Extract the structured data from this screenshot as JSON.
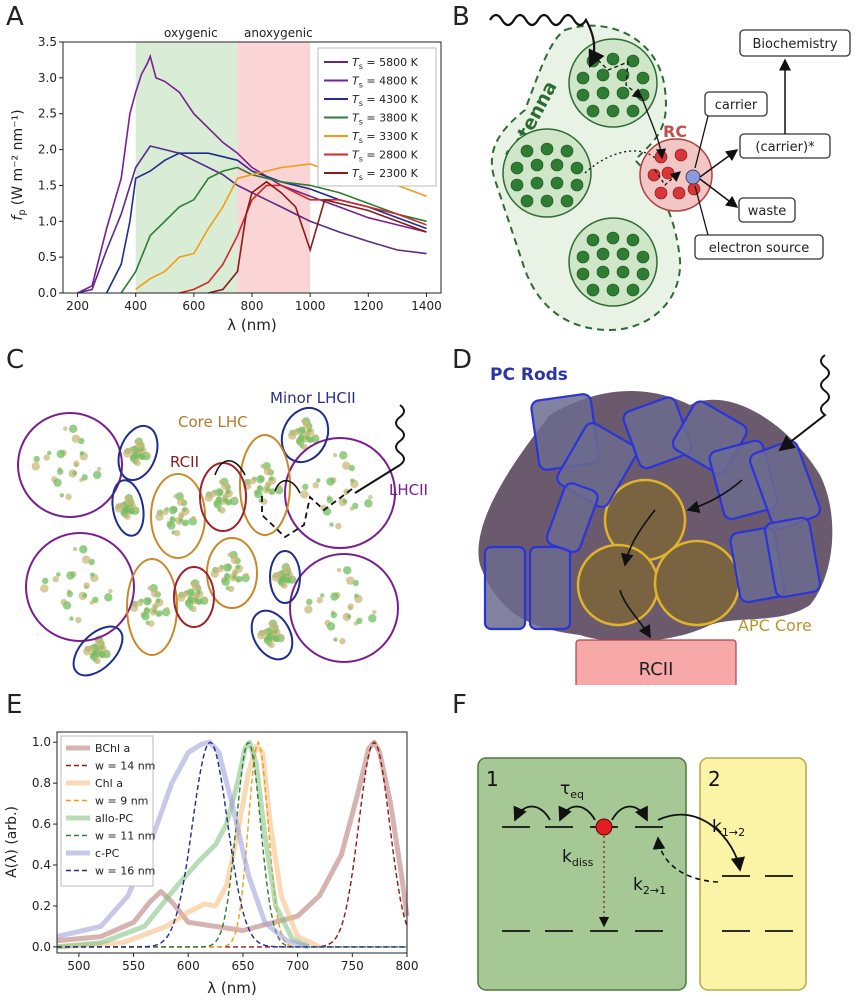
{
  "panels": {
    "A": "A",
    "B": "B",
    "C": "C",
    "D": "D",
    "E": "E",
    "F": "F"
  },
  "panel_a": {
    "region_oxygenic": "oxygenic",
    "region_anoxygenic": "anoxygenic",
    "xlabel": "λ (nm)",
    "ylabel": "f",
    "ylabel_sub": "p",
    "ylabel_units": "(W m⁻² nm⁻¹)"
  },
  "panel_b": {
    "antenna": "Antenna",
    "rc": "RC",
    "carrier": "carrier",
    "carrier_star": "(carrier)*",
    "biochemistry": "Biochemistry",
    "waste": "waste",
    "electron_source": "electron source"
  },
  "panel_c": {
    "core_lhc": "Core LHC",
    "minor_lhcii": "Minor LHCII",
    "rcii": "RCII",
    "lhcii": "LHCII"
  },
  "panel_d": {
    "pc_rods": "PC Rods",
    "apc_core": "APC Core",
    "rcii": "RCII"
  },
  "panel_e": {
    "xlabel": "λ (nm)",
    "ylabel": "A(λ) (arb.)"
  },
  "panel_f": {
    "box1": "1",
    "box2": "2",
    "tau_eq": "τ",
    "tau_eq_sub": "eq",
    "k_diss": "k",
    "k_diss_sub": "diss",
    "k12": "k",
    "k12_sub": "1→2",
    "k21": "k",
    "k21_sub": "2→1"
  },
  "chart_data": [
    {
      "type": "line",
      "panel": "A",
      "xlabel": "λ (nm)",
      "ylabel": "f_p (W m⁻² nm⁻¹)",
      "xlim": [
        150,
        1450
      ],
      "ylim": [
        0,
        3.5
      ],
      "xticks": [
        200,
        400,
        600,
        800,
        1000,
        1200,
        1400
      ],
      "yticks": [
        0.0,
        0.5,
        1.0,
        1.5,
        2.0,
        2.5,
        3.0,
        3.5
      ],
      "shaded_regions": [
        {
          "label": "oxygenic",
          "range": [
            400,
            750
          ],
          "color": "#d9ecd6"
        },
        {
          "label": "anoxygenic",
          "range": [
            750,
            1000
          ],
          "color": "#fbd5d5"
        }
      ],
      "legend_position": "top-right",
      "series": [
        {
          "name": "T_s = 5800 K",
          "legend": "5800 K",
          "color": "#5b2a86",
          "x": [
            200,
            250,
            300,
            350,
            400,
            450,
            500,
            550,
            600,
            650,
            700,
            750,
            800,
            850,
            900,
            950,
            1000,
            1100,
            1200,
            1300,
            1400
          ],
          "y": [
            0.0,
            0.05,
            0.6,
            1.1,
            1.75,
            2.05,
            2.0,
            1.95,
            1.85,
            1.75,
            1.65,
            1.5,
            1.4,
            1.3,
            1.2,
            1.1,
            1.0,
            0.85,
            0.72,
            0.6,
            0.55
          ]
        },
        {
          "name": "T_s = 4800 K",
          "legend": "4800 K",
          "color": "#7a1f8f",
          "x": [
            200,
            250,
            300,
            350,
            380,
            400,
            420,
            440,
            450,
            470,
            500,
            550,
            600,
            650,
            700,
            750,
            800,
            900,
            1000,
            1100,
            1200,
            1300,
            1400
          ],
          "y": [
            0.0,
            0.1,
            0.9,
            1.6,
            2.5,
            2.8,
            3.05,
            3.2,
            3.3,
            3.0,
            2.95,
            2.8,
            2.5,
            2.3,
            2.1,
            1.95,
            1.75,
            1.5,
            1.35,
            1.2,
            1.05,
            0.95,
            0.85
          ]
        },
        {
          "name": "T_s = 4300 K",
          "legend": "4300 K",
          "color": "#1f2d8f",
          "x": [
            300,
            350,
            380,
            400,
            450,
            500,
            550,
            600,
            650,
            700,
            750,
            800,
            900,
            1000,
            1100,
            1200,
            1300,
            1400
          ],
          "y": [
            0.0,
            0.4,
            1.0,
            1.6,
            1.7,
            1.85,
            1.95,
            1.95,
            1.95,
            1.9,
            1.85,
            1.7,
            1.55,
            1.45,
            1.3,
            1.2,
            1.05,
            0.9
          ]
        },
        {
          "name": "T_s = 3800 K",
          "legend": "3800 K",
          "color": "#2e7d32",
          "x": [
            350,
            400,
            450,
            500,
            550,
            600,
            650,
            700,
            750,
            800,
            900,
            1000,
            1100,
            1200,
            1300,
            1400
          ],
          "y": [
            0.0,
            0.3,
            0.8,
            1.0,
            1.2,
            1.3,
            1.6,
            1.7,
            1.75,
            1.65,
            1.55,
            1.5,
            1.4,
            1.25,
            1.1,
            1.0
          ]
        },
        {
          "name": "T_s = 3300 K",
          "legend": "3300 K",
          "color": "#f39c12",
          "x": [
            400,
            450,
            500,
            550,
            600,
            650,
            700,
            750,
            800,
            850,
            900,
            1000,
            1100,
            1200,
            1300,
            1400
          ],
          "y": [
            0.05,
            0.2,
            0.3,
            0.5,
            0.55,
            0.9,
            1.2,
            1.6,
            1.65,
            1.7,
            1.75,
            1.8,
            1.65,
            1.55,
            1.5,
            1.35
          ]
        },
        {
          "name": "T_s = 2800 K",
          "legend": "2800 K",
          "color": "#d62728",
          "x": [
            550,
            600,
            650,
            700,
            750,
            800,
            850,
            900,
            950,
            1000,
            1100,
            1200,
            1300,
            1400
          ],
          "y": [
            0.0,
            0.05,
            0.15,
            0.4,
            0.8,
            1.3,
            1.5,
            1.5,
            1.4,
            1.3,
            1.3,
            1.2,
            1.1,
            0.95
          ]
        },
        {
          "name": "T_s = 2300 K",
          "legend": "2300 K",
          "color": "#8b1a1a",
          "x": [
            650,
            700,
            750,
            780,
            800,
            850,
            900,
            950,
            1000,
            1050,
            1100,
            1200,
            1300,
            1400
          ],
          "y": [
            0.0,
            0.05,
            0.3,
            1.1,
            1.4,
            1.55,
            1.4,
            1.2,
            0.6,
            1.3,
            1.25,
            1.15,
            1.0,
            0.85
          ]
        }
      ]
    },
    {
      "type": "line",
      "panel": "E",
      "xlabel": "λ (nm)",
      "ylabel": "A(λ) (arb.)",
      "xlim": [
        480,
        800
      ],
      "ylim": [
        -0.03,
        1.05
      ],
      "xticks": [
        500,
        550,
        600,
        650,
        700,
        750,
        800
      ],
      "yticks": [
        0.0,
        0.2,
        0.4,
        0.6,
        0.8,
        1.0
      ],
      "legend_position": "top-left",
      "legend": [
        {
          "label": "BChl a",
          "style": "thick"
        },
        {
          "label": "w = 14 nm",
          "style": "dashed"
        },
        {
          "label": "Chl a",
          "style": "thick"
        },
        {
          "label": "w = 9 nm",
          "style": "dashed"
        },
        {
          "label": "allo-PC",
          "style": "thick"
        },
        {
          "label": "w = 11 nm",
          "style": "dashed"
        },
        {
          "label": "c-PC",
          "style": "thick"
        },
        {
          "label": "w = 16 nm",
          "style": "dashed"
        }
      ],
      "series": [
        {
          "name": "BChl a",
          "style": "thick",
          "color": "#b5746f",
          "x": [
            480,
            520,
            550,
            565,
            575,
            585,
            600,
            650,
            700,
            720,
            740,
            755,
            765,
            770,
            775,
            785,
            795,
            800
          ],
          "y": [
            0.03,
            0.05,
            0.12,
            0.22,
            0.27,
            0.22,
            0.12,
            0.08,
            0.15,
            0.25,
            0.45,
            0.75,
            0.97,
            1.0,
            0.95,
            0.7,
            0.35,
            0.15
          ]
        },
        {
          "name": "w = 14 nm",
          "style": "dashed",
          "color": "#8b1a1a",
          "center": 770,
          "width": 14
        },
        {
          "name": "Chl a",
          "style": "thick",
          "color": "#f5b97a",
          "x": [
            480,
            540,
            580,
            600,
            615,
            625,
            635,
            645,
            655,
            662,
            668,
            675,
            685,
            700,
            720
          ],
          "y": [
            0.0,
            0.02,
            0.1,
            0.17,
            0.21,
            0.2,
            0.3,
            0.55,
            0.85,
            0.98,
            0.95,
            0.6,
            0.25,
            0.05,
            0.0
          ]
        },
        {
          "name": "w = 9 nm",
          "style": "dashed",
          "color": "#f39c12",
          "center": 664,
          "width": 9
        },
        {
          "name": "allo-PC",
          "style": "thick",
          "color": "#7dbf7d",
          "x": [
            480,
            520,
            560,
            590,
            610,
            625,
            635,
            645,
            652,
            656,
            662,
            670,
            680,
            695,
            710
          ],
          "y": [
            0.0,
            0.02,
            0.1,
            0.3,
            0.42,
            0.5,
            0.6,
            0.8,
            0.97,
            1.0,
            0.9,
            0.55,
            0.2,
            0.04,
            0.0
          ]
        },
        {
          "name": "w = 11 nm",
          "style": "dashed",
          "color": "#2e7d32",
          "center": 655,
          "width": 11
        },
        {
          "name": "c-PC",
          "style": "thick",
          "color": "#9a9ad8",
          "x": [
            480,
            520,
            545,
            565,
            585,
            600,
            612,
            620,
            628,
            640,
            655,
            670,
            690,
            710
          ],
          "y": [
            0.05,
            0.1,
            0.25,
            0.5,
            0.8,
            0.95,
            0.99,
            1.0,
            0.95,
            0.7,
            0.35,
            0.12,
            0.03,
            0.0
          ]
        },
        {
          "name": "w = 16 nm",
          "style": "dashed",
          "color": "#1f2d8f",
          "center": 620,
          "width": 16
        }
      ]
    }
  ]
}
